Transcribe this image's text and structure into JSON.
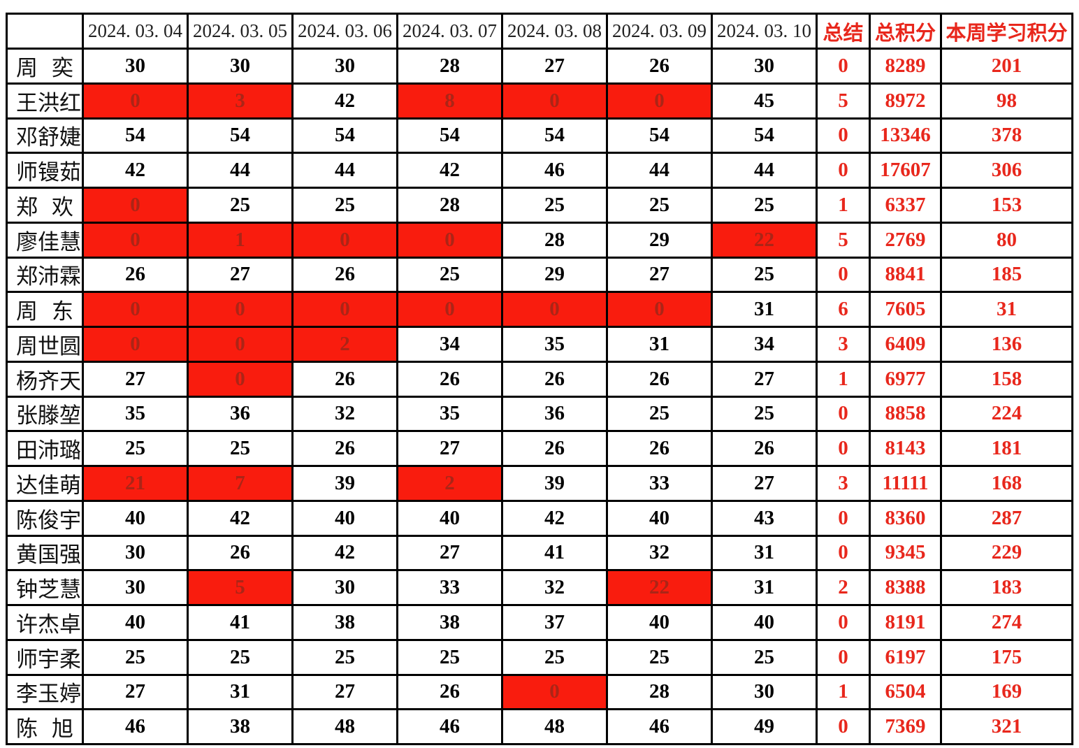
{
  "table": {
    "corner_label": "",
    "date_columns": [
      "2024. 03. 04",
      "2024. 03. 05",
      "2024. 03. 06",
      "2024. 03. 07",
      "2024. 03. 08",
      "2024. 03. 09",
      "2024. 03. 10"
    ],
    "summary_columns": [
      "总结",
      "总积分",
      "本周学习积分"
    ],
    "rows": [
      {
        "name": "周奕",
        "scores": [
          30,
          30,
          30,
          28,
          27,
          26,
          30
        ],
        "red_cells": [],
        "summary": 0,
        "total_points": 8289,
        "week_points": 201
      },
      {
        "name": "王洪红",
        "scores": [
          0,
          3,
          42,
          8,
          0,
          0,
          45
        ],
        "red_cells": [
          0,
          1,
          3,
          4,
          5
        ],
        "summary": 5,
        "total_points": 8972,
        "week_points": 98
      },
      {
        "name": "邓舒婕",
        "scores": [
          54,
          54,
          54,
          54,
          54,
          54,
          54
        ],
        "red_cells": [],
        "summary": 0,
        "total_points": 13346,
        "week_points": 378
      },
      {
        "name": "师镘茹",
        "scores": [
          42,
          44,
          44,
          42,
          46,
          44,
          44
        ],
        "red_cells": [],
        "summary": 0,
        "total_points": 17607,
        "week_points": 306
      },
      {
        "name": "郑欢",
        "scores": [
          0,
          25,
          25,
          28,
          25,
          25,
          25
        ],
        "red_cells": [
          0
        ],
        "summary": 1,
        "total_points": 6337,
        "week_points": 153
      },
      {
        "name": "廖佳慧",
        "scores": [
          0,
          1,
          0,
          0,
          28,
          29,
          22
        ],
        "red_cells": [
          0,
          1,
          2,
          3,
          6
        ],
        "summary": 5,
        "total_points": 2769,
        "week_points": 80
      },
      {
        "name": "郑沛霖",
        "scores": [
          26,
          27,
          26,
          25,
          29,
          27,
          25
        ],
        "red_cells": [],
        "summary": 0,
        "total_points": 8841,
        "week_points": 185
      },
      {
        "name": "周东",
        "scores": [
          0,
          0,
          0,
          0,
          0,
          0,
          31
        ],
        "red_cells": [
          0,
          1,
          2,
          3,
          4,
          5
        ],
        "summary": 6,
        "total_points": 7605,
        "week_points": 31
      },
      {
        "name": "周世圆",
        "scores": [
          0,
          0,
          2,
          34,
          35,
          31,
          34
        ],
        "red_cells": [
          0,
          1,
          2
        ],
        "summary": 3,
        "total_points": 6409,
        "week_points": 136
      },
      {
        "name": "杨齐天",
        "scores": [
          27,
          0,
          26,
          26,
          26,
          26,
          27
        ],
        "red_cells": [
          1
        ],
        "summary": 1,
        "total_points": 6977,
        "week_points": 158
      },
      {
        "name": "张滕堃",
        "scores": [
          35,
          36,
          32,
          35,
          36,
          25,
          25
        ],
        "red_cells": [],
        "summary": 0,
        "total_points": 8858,
        "week_points": 224
      },
      {
        "name": "田沛璐",
        "scores": [
          25,
          25,
          26,
          27,
          26,
          26,
          26
        ],
        "red_cells": [],
        "summary": 0,
        "total_points": 8143,
        "week_points": 181
      },
      {
        "name": "达佳萌",
        "scores": [
          21,
          7,
          39,
          2,
          39,
          33,
          27
        ],
        "red_cells": [
          0,
          1,
          3
        ],
        "summary": 3,
        "total_points": 11111,
        "week_points": 168
      },
      {
        "name": "陈俊宇",
        "scores": [
          40,
          42,
          40,
          40,
          42,
          40,
          43
        ],
        "red_cells": [],
        "summary": 0,
        "total_points": 8360,
        "week_points": 287
      },
      {
        "name": "黄国强",
        "scores": [
          30,
          26,
          42,
          27,
          41,
          32,
          31
        ],
        "red_cells": [],
        "summary": 0,
        "total_points": 9345,
        "week_points": 229
      },
      {
        "name": "钟芝慧",
        "scores": [
          30,
          5,
          30,
          33,
          32,
          22,
          31
        ],
        "red_cells": [
          1,
          5
        ],
        "summary": 2,
        "total_points": 8388,
        "week_points": 183
      },
      {
        "name": "许杰卓",
        "scores": [
          40,
          41,
          38,
          38,
          37,
          40,
          40
        ],
        "red_cells": [],
        "summary": 0,
        "total_points": 8191,
        "week_points": 274
      },
      {
        "name": "师宇柔",
        "scores": [
          25,
          25,
          25,
          25,
          25,
          25,
          25
        ],
        "red_cells": [],
        "summary": 0,
        "total_points": 6197,
        "week_points": 175
      },
      {
        "name": "李玉婷",
        "scores": [
          27,
          31,
          27,
          26,
          0,
          28,
          30
        ],
        "red_cells": [
          4
        ],
        "summary": 1,
        "total_points": 6504,
        "week_points": 169
      },
      {
        "name": "陈旭",
        "scores": [
          46,
          38,
          48,
          46,
          48,
          46,
          49
        ],
        "red_cells": [],
        "summary": 0,
        "total_points": 7369,
        "week_points": 321
      }
    ]
  },
  "colors": {
    "accent_red": "#e8271c",
    "highlight_fill": "#f91c0e",
    "highlight_text": "#ab2517",
    "text_black": "#111111",
    "border_black": "#000000"
  }
}
